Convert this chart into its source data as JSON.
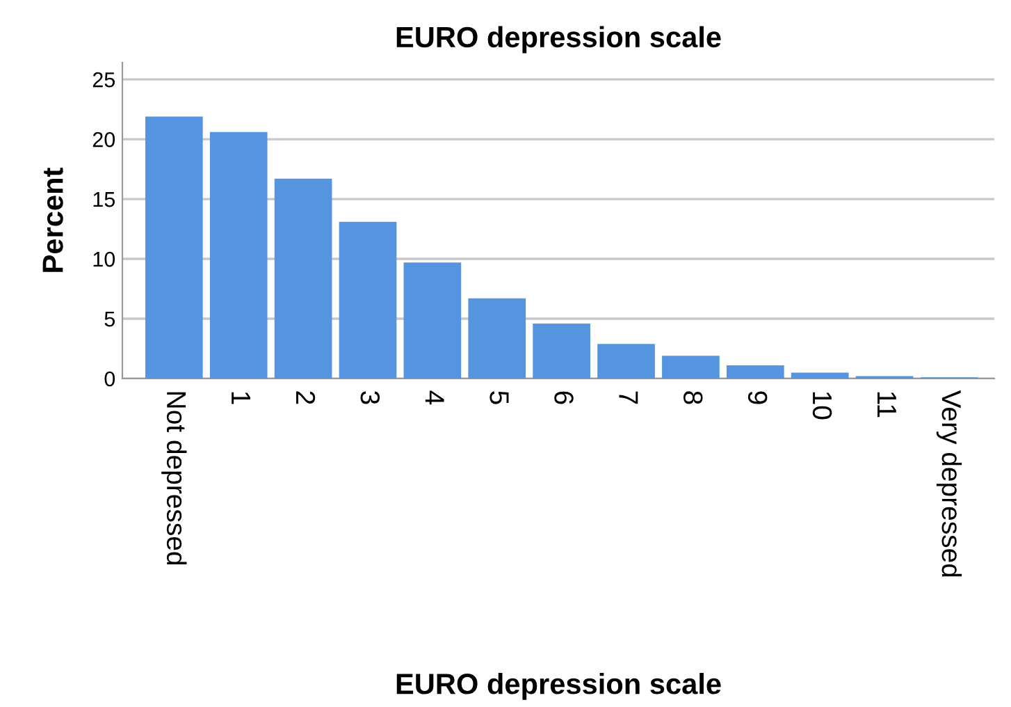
{
  "chart_data": {
    "type": "bar",
    "title": "EURO depression scale",
    "xlabel": "EURO depression scale",
    "ylabel": "Percent",
    "categories": [
      "Not depressed",
      "1",
      "2",
      "3",
      "4",
      "5",
      "6",
      "7",
      "8",
      "9",
      "10",
      "11",
      "Very depressed"
    ],
    "values": [
      21.9,
      20.6,
      16.7,
      13.1,
      9.7,
      6.7,
      4.6,
      2.9,
      1.9,
      1.1,
      0.5,
      0.2,
      0.1
    ],
    "color": "#5595e0",
    "ylim": [
      0,
      26.4
    ],
    "yticks": [
      0,
      5,
      10,
      15,
      20,
      25
    ],
    "grid": "y"
  }
}
